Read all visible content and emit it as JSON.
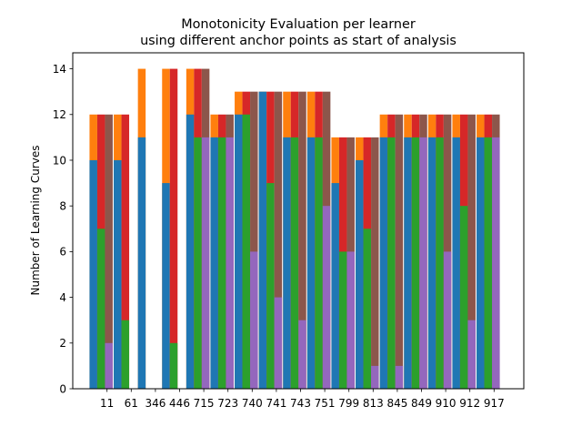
{
  "chart_data": {
    "type": "bar",
    "title_lines": [
      "Monotonicity Evaluation per learner",
      "using different anchor points as start of analysis"
    ],
    "xlabel": "",
    "ylabel": "Number of Learning Curves",
    "ylim": [
      0,
      14.7
    ],
    "yticks": [
      0,
      2,
      4,
      6,
      8,
      10,
      12,
      14
    ],
    "grid": false,
    "legend": "none",
    "categories": [
      "11",
      "61",
      "346",
      "446",
      "715",
      "723",
      "740",
      "741",
      "743",
      "751",
      "799",
      "813",
      "845",
      "849",
      "910",
      "912",
      "917"
    ],
    "series_colors": {
      "blue": "#1f77b4",
      "orange": "#ff7f0e",
      "green": "#2ca02c",
      "red": "#d62728",
      "purple": "#9467bd",
      "brown": "#8c564b"
    },
    "bars": [
      {
        "blue": 10,
        "orange": 12,
        "green": 7,
        "red": 12,
        "purple": 2,
        "brown": 12
      },
      {
        "blue": 10,
        "orange": 12,
        "green": 3,
        "red": 12,
        "purple": 0,
        "brown": 0
      },
      {
        "blue": 11,
        "orange": 14,
        "green": 0,
        "red": 0,
        "purple": 0,
        "brown": 0
      },
      {
        "blue": 9,
        "orange": 14,
        "green": 2,
        "red": 14,
        "purple": 0,
        "brown": 0
      },
      {
        "blue": 12,
        "orange": 14,
        "green": 11,
        "red": 14,
        "purple": 11,
        "brown": 14
      },
      {
        "blue": 11,
        "orange": 12,
        "green": 11,
        "red": 12,
        "purple": 11,
        "brown": 12
      },
      {
        "blue": 12,
        "orange": 13,
        "green": 12,
        "red": 13,
        "purple": 6,
        "brown": 13
      },
      {
        "blue": 13,
        "orange": 13,
        "green": 9,
        "red": 13,
        "purple": 4,
        "brown": 13
      },
      {
        "blue": 11,
        "orange": 13,
        "green": 11,
        "red": 13,
        "purple": 3,
        "brown": 13
      },
      {
        "blue": 11,
        "orange": 13,
        "green": 11,
        "red": 13,
        "purple": 8,
        "brown": 13
      },
      {
        "blue": 9,
        "orange": 11,
        "green": 6,
        "red": 11,
        "purple": 6,
        "brown": 11
      },
      {
        "blue": 10,
        "orange": 11,
        "green": 7,
        "red": 11,
        "purple": 1,
        "brown": 11
      },
      {
        "blue": 11,
        "orange": 12,
        "green": 11,
        "red": 12,
        "purple": 1,
        "brown": 12
      },
      {
        "blue": 11,
        "orange": 12,
        "green": 11,
        "red": 12,
        "purple": 11,
        "brown": 12
      },
      {
        "blue": 11,
        "orange": 12,
        "green": 11,
        "red": 12,
        "purple": 6,
        "brown": 12
      },
      {
        "blue": 11,
        "orange": 12,
        "green": 8,
        "red": 12,
        "purple": 3,
        "brown": 12
      },
      {
        "blue": 11,
        "orange": 12,
        "green": 11,
        "red": 12,
        "purple": 11,
        "brown": 12
      }
    ]
  }
}
